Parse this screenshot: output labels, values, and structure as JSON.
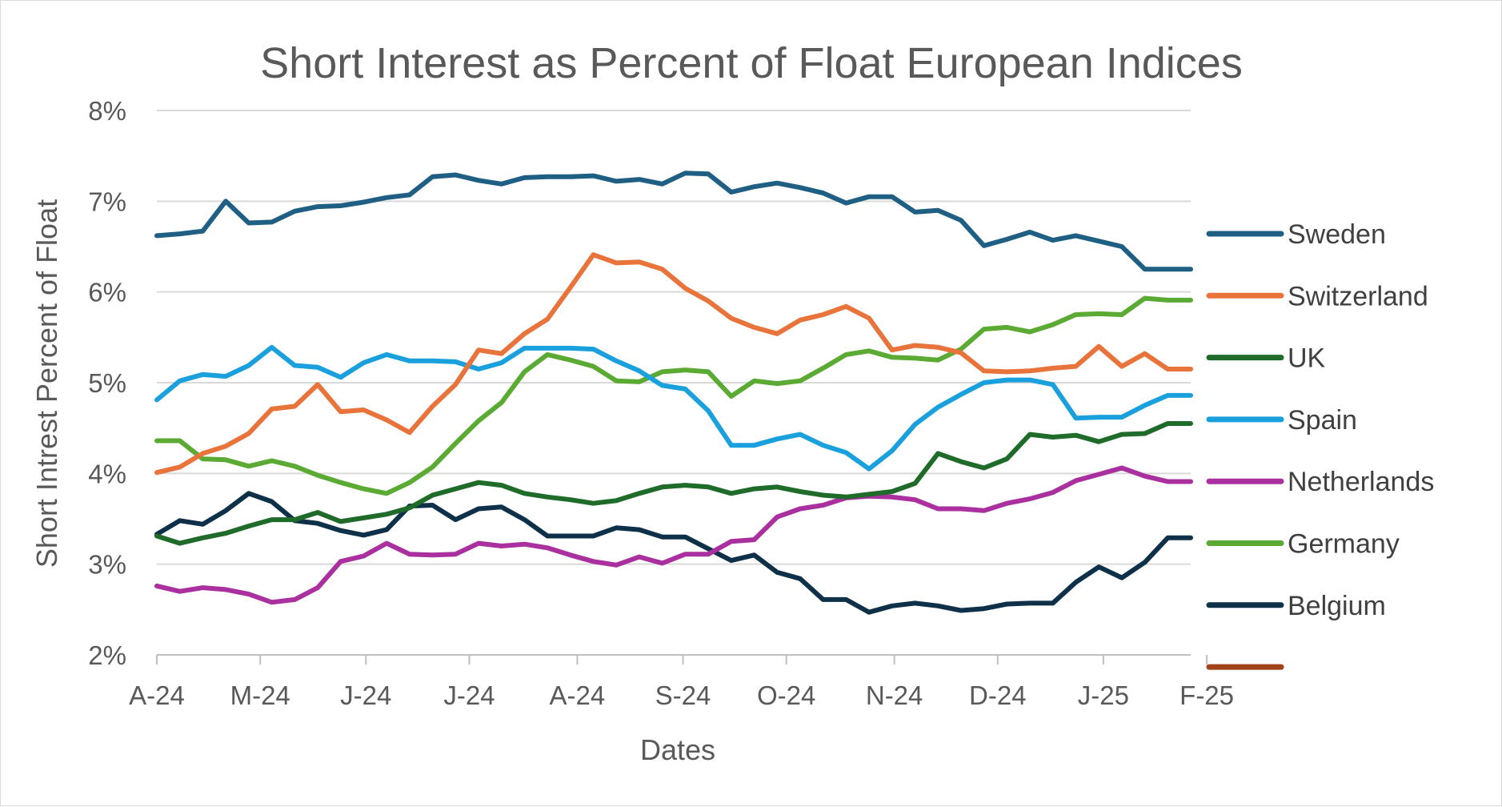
{
  "chart_data": {
    "type": "line",
    "title": "Short Interest  as Percent of Float European Indices",
    "xlabel": "Dates",
    "ylabel": "Short Intrest Percent of Float",
    "ylim": [
      2,
      8
    ],
    "yticks": [
      "2%",
      "3%",
      "4%",
      "5%",
      "6%",
      "7%",
      "8%"
    ],
    "x_tick_labels": [
      "A-24",
      "M-24",
      "J-24",
      "J-24",
      "A-24",
      "S-24",
      "O-24",
      "N-24",
      "D-24",
      "J-25",
      "F-25"
    ],
    "x_tick_index": [
      0,
      4.5,
      9.1,
      13.6,
      18.3,
      22.9,
      27.4,
      32.1,
      36.6,
      41.2,
      45.7
    ],
    "grid": true,
    "legend_position": "right",
    "point_count": 46,
    "series": [
      {
        "name": "Sweden",
        "color": "#1f5f84",
        "values": [
          6.62,
          6.64,
          6.67,
          7.0,
          6.76,
          6.77,
          6.89,
          6.94,
          6.95,
          6.99,
          7.04,
          7.07,
          7.27,
          7.29,
          7.23,
          7.19,
          7.26,
          7.27,
          7.27,
          7.28,
          7.22,
          7.24,
          7.19,
          7.31,
          7.3,
          7.1,
          7.16,
          7.2,
          7.15,
          7.09,
          6.98,
          7.05,
          7.05,
          6.88,
          6.9,
          6.79,
          6.51,
          6.58,
          6.66,
          6.57,
          6.62,
          6.56,
          6.5,
          6.25,
          6.25,
          6.25
        ]
      },
      {
        "name": "Switzerland",
        "color": "#e8743b",
        "values": [
          4.01,
          4.07,
          4.22,
          4.3,
          4.44,
          4.71,
          4.74,
          4.98,
          4.68,
          4.7,
          4.59,
          4.45,
          4.74,
          4.98,
          5.36,
          5.32,
          5.54,
          5.7,
          6.05,
          6.41,
          6.32,
          6.33,
          6.25,
          6.04,
          5.9,
          5.71,
          5.61,
          5.54,
          5.69,
          5.75,
          5.84,
          5.71,
          5.36,
          5.41,
          5.39,
          5.33,
          5.13,
          5.12,
          5.13,
          5.16,
          5.18,
          5.4,
          5.18,
          5.32,
          5.15,
          5.15
        ]
      },
      {
        "name": "UK",
        "color": "#1e6b2a",
        "values": [
          3.31,
          3.23,
          3.29,
          3.34,
          3.42,
          3.49,
          3.49,
          3.57,
          3.47,
          3.51,
          3.55,
          3.62,
          3.76,
          3.83,
          3.9,
          3.87,
          3.78,
          3.74,
          3.71,
          3.67,
          3.7,
          3.78,
          3.85,
          3.87,
          3.85,
          3.78,
          3.83,
          3.85,
          3.8,
          3.76,
          3.74,
          3.77,
          3.8,
          3.89,
          4.22,
          4.13,
          4.06,
          4.16,
          4.43,
          4.4,
          4.42,
          4.35,
          4.43,
          4.44,
          4.55,
          4.55
        ]
      },
      {
        "name": "Spain",
        "color": "#1aa0dc",
        "values": [
          4.81,
          5.02,
          5.09,
          5.07,
          5.19,
          5.39,
          5.19,
          5.17,
          5.06,
          5.22,
          5.31,
          5.24,
          5.24,
          5.23,
          5.15,
          5.22,
          5.38,
          5.38,
          5.38,
          5.37,
          5.24,
          5.13,
          4.97,
          4.93,
          4.69,
          4.31,
          4.31,
          4.38,
          4.43,
          4.31,
          4.23,
          4.05,
          4.25,
          4.54,
          4.73,
          4.87,
          5.0,
          5.03,
          5.03,
          4.98,
          4.61,
          4.62,
          4.62,
          4.75,
          4.86,
          4.86
        ]
      },
      {
        "name": "Netherlands",
        "color": "#a9309e",
        "values": [
          2.76,
          2.7,
          2.74,
          2.72,
          2.67,
          2.58,
          2.61,
          2.74,
          3.03,
          3.09,
          3.23,
          3.11,
          3.1,
          3.11,
          3.23,
          3.2,
          3.22,
          3.18,
          3.1,
          3.03,
          2.99,
          3.08,
          3.01,
          3.11,
          3.11,
          3.25,
          3.27,
          3.52,
          3.61,
          3.65,
          3.73,
          3.75,
          3.74,
          3.71,
          3.61,
          3.61,
          3.59,
          3.67,
          3.72,
          3.79,
          3.92,
          3.99,
          4.06,
          3.97,
          3.91,
          3.91
        ]
      },
      {
        "name": "Germany",
        "color": "#5aaa34",
        "values": [
          4.36,
          4.36,
          4.16,
          4.15,
          4.08,
          4.14,
          4.08,
          3.98,
          3.9,
          3.83,
          3.78,
          3.9,
          4.07,
          4.33,
          4.58,
          4.78,
          5.12,
          5.31,
          5.25,
          5.18,
          5.02,
          5.01,
          5.12,
          5.14,
          5.12,
          4.85,
          5.02,
          4.99,
          5.02,
          5.16,
          5.31,
          5.35,
          5.28,
          5.27,
          5.25,
          5.37,
          5.59,
          5.61,
          5.56,
          5.64,
          5.75,
          5.76,
          5.75,
          5.93,
          5.91,
          5.91
        ]
      },
      {
        "name": "Belgium",
        "color": "#0e3048",
        "values": [
          3.33,
          3.48,
          3.44,
          3.59,
          3.78,
          3.69,
          3.48,
          3.45,
          3.37,
          3.32,
          3.38,
          3.64,
          3.65,
          3.49,
          3.61,
          3.63,
          3.49,
          3.31,
          3.31,
          3.31,
          3.4,
          3.38,
          3.3,
          3.3,
          3.17,
          3.04,
          3.1,
          2.91,
          2.84,
          2.61,
          2.61,
          2.47,
          2.54,
          2.57,
          2.54,
          2.49,
          2.51,
          2.56,
          2.57,
          2.57,
          2.8,
          2.97,
          2.85,
          3.02,
          3.29,
          3.29
        ]
      },
      {
        "name": "",
        "color": "#a0421a",
        "values": []
      }
    ]
  }
}
